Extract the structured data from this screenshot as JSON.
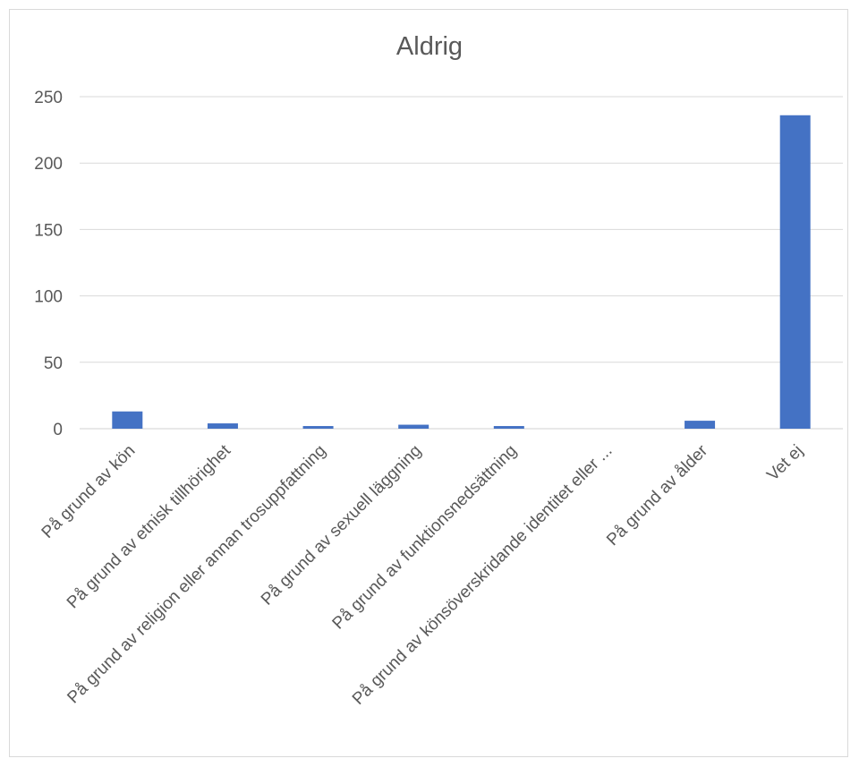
{
  "chart_data": {
    "type": "bar",
    "title": "Aldrig",
    "xlabel": "",
    "ylabel": "",
    "ylim": [
      0,
      250
    ],
    "yticks": [
      0,
      50,
      100,
      150,
      200,
      250
    ],
    "grid": true,
    "legend": "none",
    "categories": [
      "På grund av kön",
      "På grund av etnisk tillhörighet",
      "På grund av religion eller annan trosuppfattning",
      "På grund av sexuell läggning",
      "På grund av funktionsnedsättning",
      "På grund av könsöverskridande identitet eller ...",
      "På grund av ålder",
      "Vet ej"
    ],
    "values": [
      13,
      4,
      2,
      3,
      2,
      0,
      6,
      236
    ],
    "colors": {
      "bar": "#4472c4",
      "grid": "#d9d9d9",
      "text": "#595959"
    }
  }
}
